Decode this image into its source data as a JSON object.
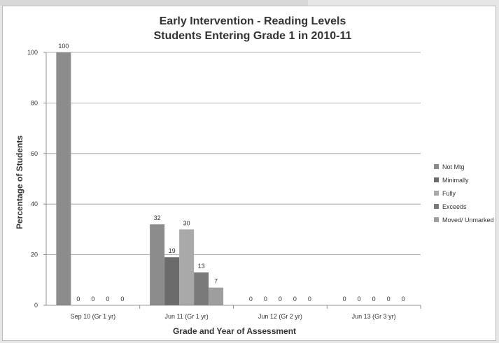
{
  "chart_data": {
    "type": "bar",
    "title": "Early Intervention - Reading Levels",
    "subtitle": "Students Entering Grade 1 in 2010-11",
    "xlabel": "Grade and Year of Assessment",
    "ylabel": "Percentage of Students",
    "ylim": [
      0,
      100
    ],
    "yticks": [
      0,
      20,
      40,
      60,
      80,
      100
    ],
    "grid": true,
    "legend": "right",
    "categories": [
      "Sep 10 (Gr 1 yr)",
      "Jun 11 (Gr 1 yr)",
      "Jun 12 (Gr 2 yr)",
      "Jun 13 (Gr 3 yr)"
    ],
    "series": [
      {
        "name": "Not Mtg",
        "color": "#8c8c8c",
        "values": [
          100,
          32,
          0,
          0
        ]
      },
      {
        "name": "Minimally",
        "color": "#6b6b6b",
        "values": [
          0,
          19,
          0,
          0
        ]
      },
      {
        "name": "Fully",
        "color": "#a9a9a9",
        "values": [
          0,
          30,
          0,
          0
        ]
      },
      {
        "name": "Exceeds",
        "color": "#7a7a7a",
        "values": [
          0,
          13,
          0,
          0
        ]
      },
      {
        "name": "Moved/ Unmarked",
        "color": "#9e9e9e",
        "values": [
          0,
          7,
          0,
          0
        ]
      }
    ]
  }
}
